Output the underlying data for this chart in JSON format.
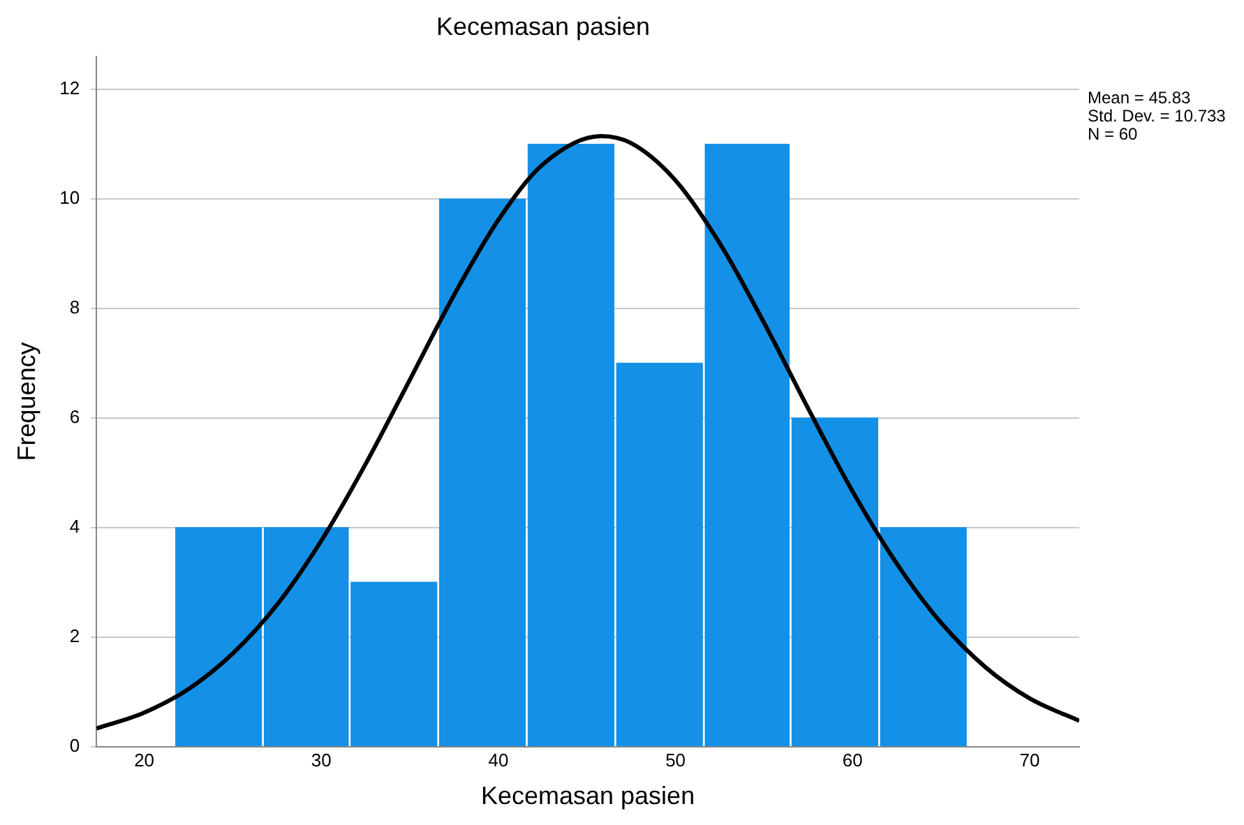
{
  "chart_data": {
    "type": "histogram",
    "title": "Kecemasan pasien",
    "xlabel": "Kecemasan pasien",
    "ylabel": "Frequency",
    "bins": [
      21.7,
      26.7,
      31.6,
      36.6,
      41.6,
      46.6,
      51.6,
      56.5,
      61.5,
      66.5
    ],
    "values": [
      4,
      4,
      3,
      10,
      11,
      7,
      11,
      6,
      4
    ],
    "color": "#1490e6",
    "series": [
      {
        "type": "line",
        "color": "#000000",
        "x": [
          17.3,
          20,
          22.5,
          25,
          27.5,
          30,
          32.5,
          35,
          37.5,
          40,
          42.5,
          45.8,
          47.5,
          50,
          52.5,
          55,
          57.5,
          60,
          62.5,
          65,
          67.5,
          70,
          72.8
        ],
        "values": [
          0.33,
          0.62,
          1.05,
          1.7,
          2.59,
          3.76,
          5.16,
          6.7,
          8.25,
          9.62,
          10.63,
          11.15,
          11.02,
          10.34,
          9.19,
          7.74,
          6.17,
          4.66,
          3.34,
          2.26,
          1.45,
          0.88,
          0.47
        ]
      }
    ],
    "xlim": [
      17.3,
      72.8
    ],
    "xticks": [
      20,
      30,
      40,
      50,
      60,
      70
    ],
    "ylim": [
      0,
      12.6
    ],
    "yticks": [
      0,
      2,
      4,
      6,
      8,
      10,
      12
    ],
    "grid": "y",
    "legend": false,
    "marker": "none",
    "annotations": [
      "Mean = 45.83",
      "Std. Dev. = 10.733",
      "N = 60"
    ]
  }
}
